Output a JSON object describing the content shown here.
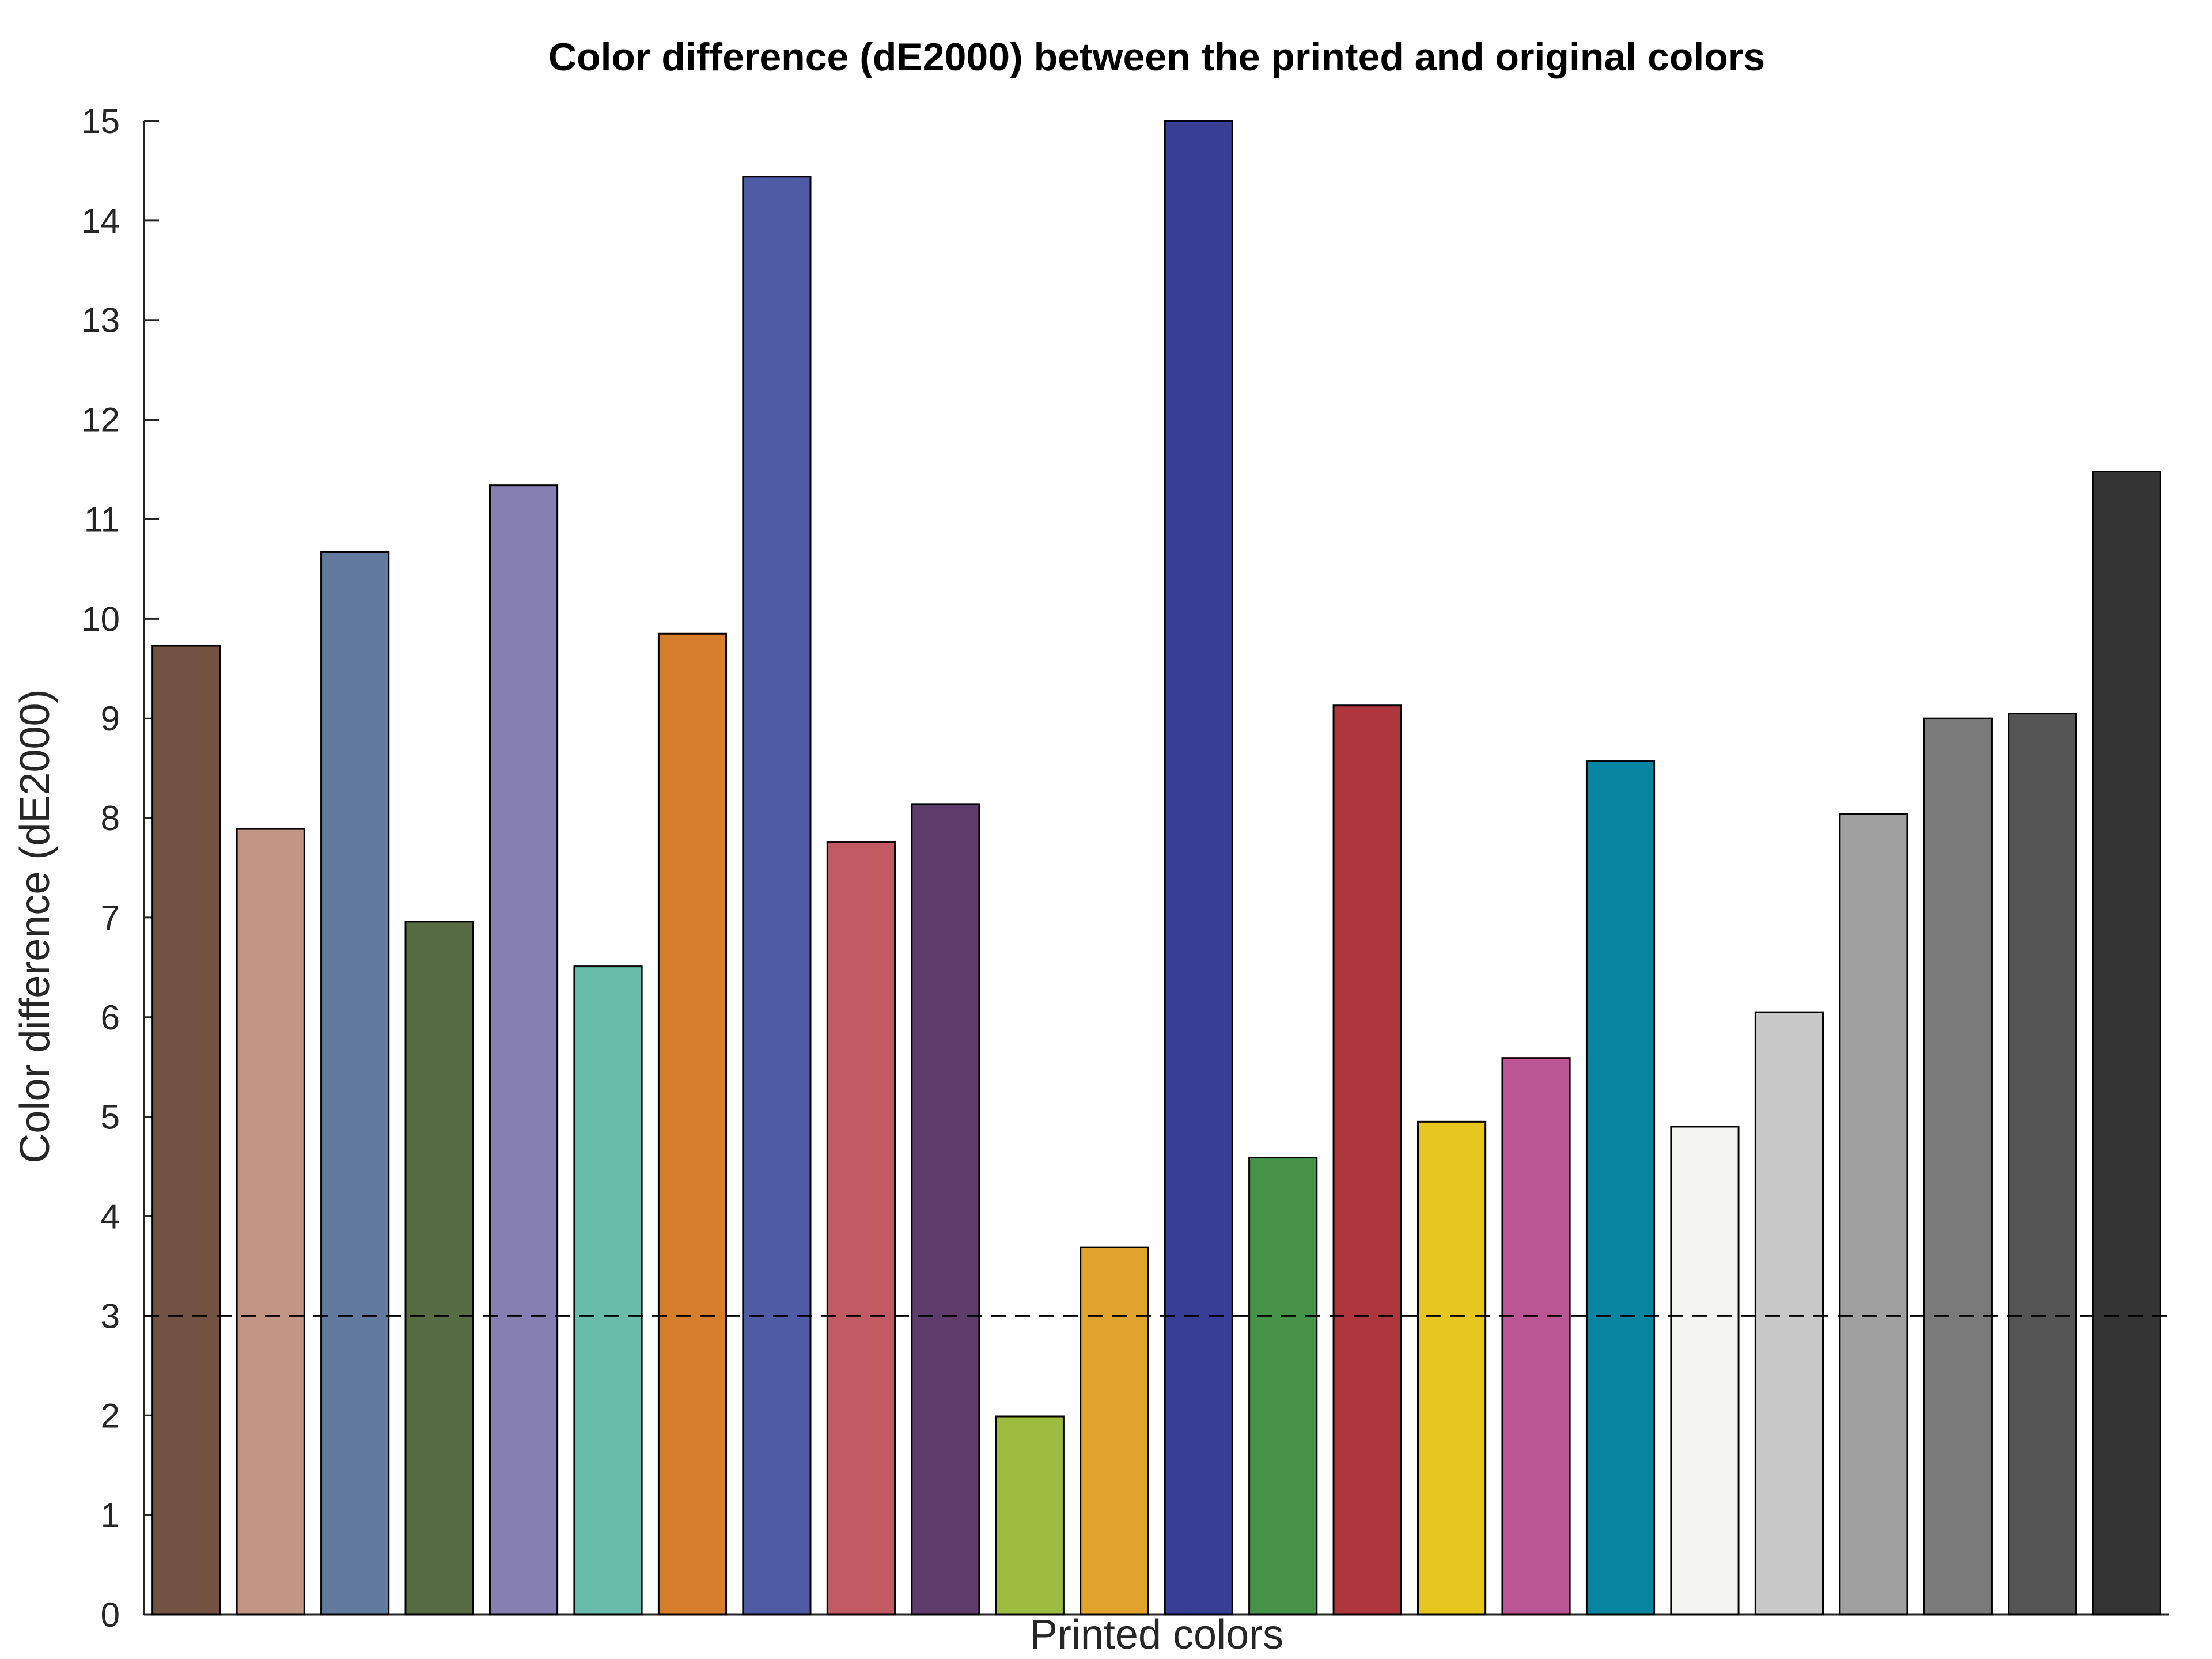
{
  "chart_data": {
    "type": "bar",
    "title": "Color difference (dE2000) between the printed and original colors",
    "xlabel": "Printed colors",
    "ylabel": "Color difference (dE2000)",
    "ylim": [
      0,
      15
    ],
    "yticks": [
      0,
      1,
      2,
      3,
      4,
      5,
      6,
      7,
      8,
      9,
      10,
      11,
      12,
      13,
      14,
      15
    ],
    "grid": false,
    "reference_line": {
      "y": 3,
      "style": "dashed",
      "color": "#000000"
    },
    "values": [
      9.73,
      7.89,
      10.67,
      6.96,
      11.34,
      6.51,
      9.85,
      14.44,
      7.76,
      8.14,
      1.99,
      3.69,
      15.0,
      4.59,
      9.13,
      4.95,
      5.59,
      8.57,
      4.9,
      6.05,
      8.04,
      9.0,
      9.05,
      11.48
    ],
    "bar_colors": [
      "#735244",
      "#c29682",
      "#627a9d",
      "#576c43",
      "#8580b1",
      "#67bdaa",
      "#d67e2c",
      "#505ba6",
      "#c15a63",
      "#5e3c6c",
      "#9dbc40",
      "#e0a32e",
      "#383d96",
      "#469449",
      "#af363c",
      "#e7c71f",
      "#bb5695",
      "#0885a1",
      "#f3f3f2",
      "#c8c8c8",
      "#a0a0a0",
      "#7a7a7a",
      "#555555",
      "#343434"
    ]
  }
}
